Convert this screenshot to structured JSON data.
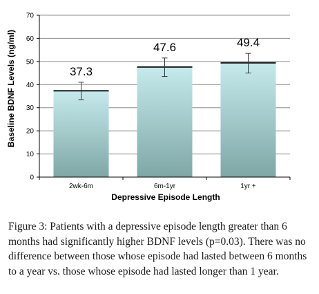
{
  "chart_data": {
    "type": "bar",
    "categories": [
      "2wk-6m",
      "6m-1yr",
      "1yr +"
    ],
    "values": [
      37.3,
      47.6,
      49.4
    ],
    "data_labels": [
      "37.3",
      "47.6",
      "49.4"
    ],
    "error_bars": [
      {
        "low": 33.5,
        "high": 41.0
      },
      {
        "low": 43.5,
        "high": 51.5
      },
      {
        "low": 45.0,
        "high": 53.5
      }
    ],
    "xlabel": "Depressive Episode Length",
    "ylabel": "Baseline BDNF Levels (ng/ml)",
    "ylim": [
      0,
      70
    ],
    "yticks": [
      "0",
      "10",
      "20",
      "30",
      "40",
      "50",
      "60",
      "70"
    ],
    "grid": true,
    "colors": {
      "bar_top": "#c6eaec",
      "bar_bottom": "#7fa7a6",
      "grid": "#8c8c8c"
    }
  },
  "caption": {
    "label": "Figure 3:",
    "text": " Patients with a depressive episode length greater than 6 months had significantly higher BDNF levels (p=0.03). There was no difference between those whose episode had lasted between 6 months to a year vs. those whose episode had lasted longer than 1 year."
  }
}
